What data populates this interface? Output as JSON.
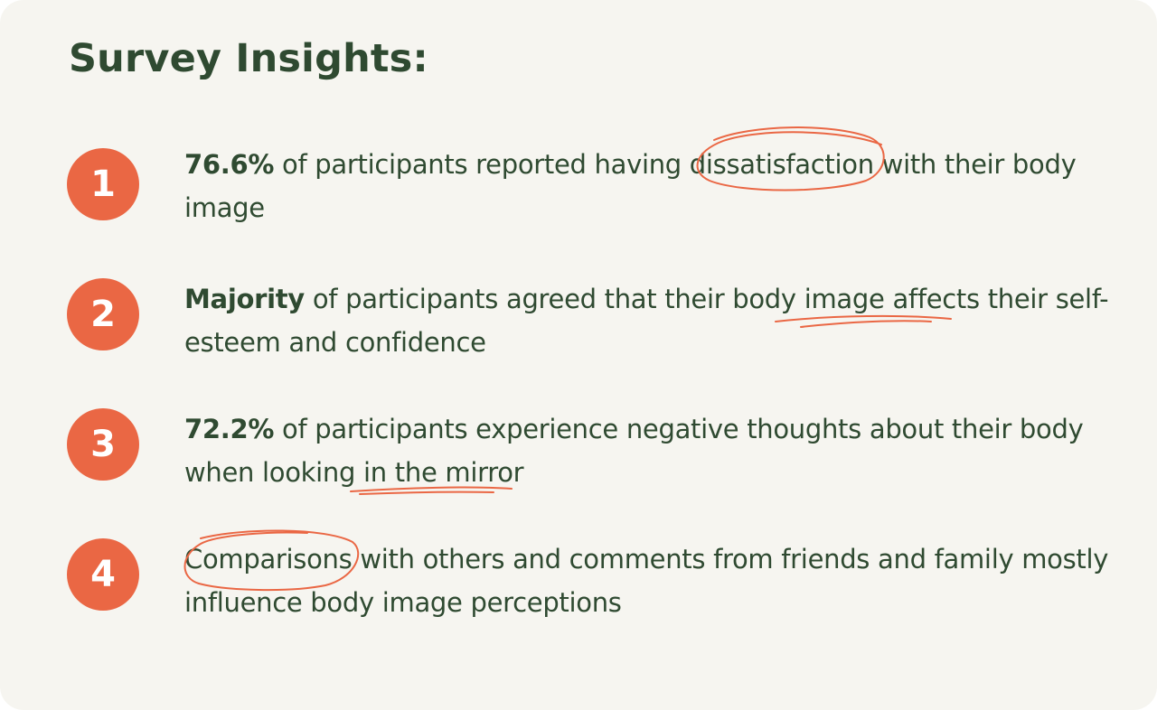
{
  "title": "Survey Insights:",
  "insights": [
    {
      "number": "1",
      "lead": "76.6%",
      "rest": " of participants reported having dissatisfaction with their body image"
    },
    {
      "number": "2",
      "lead": "Majority",
      "rest": " of participants agreed that their body image affects their self-esteem and confidence"
    },
    {
      "number": "3",
      "lead": "72.2%",
      "rest": " of participants experience negative thoughts about their body when looking in the mirror"
    },
    {
      "number": "4",
      "lead": "",
      "rest": "Comparisons with others and comments from friends and family mostly influence body image perceptions"
    }
  ],
  "colors": {
    "background": "#f6f5f0",
    "text": "#2f4a31",
    "accent": "#ea6744"
  }
}
